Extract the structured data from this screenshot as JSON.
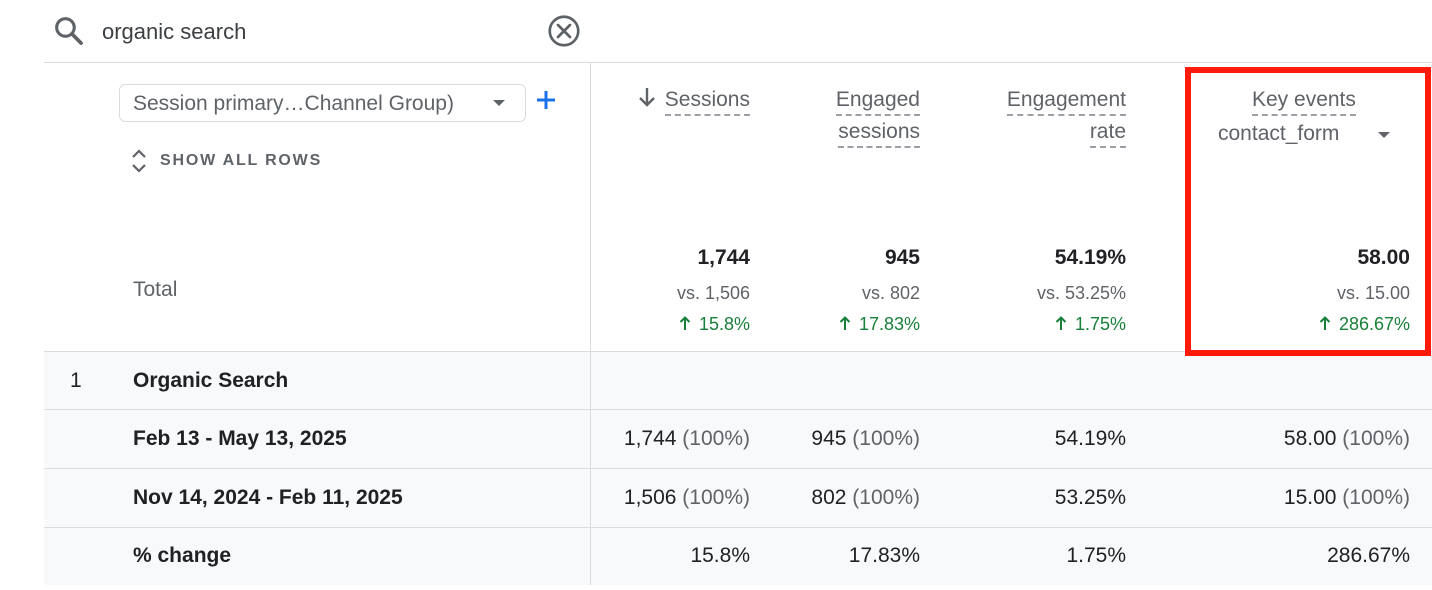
{
  "search": {
    "query": "organic search",
    "icon": "search-icon",
    "clear_icon": "close-circle-icon"
  },
  "dimension": {
    "selected": "Session primary…Channel Group)",
    "show_all_rows": "SHOW ALL ROWS"
  },
  "columns": [
    {
      "line1": "Sessions",
      "line2": "",
      "sorted": "descending"
    },
    {
      "line1": "Engaged",
      "line2": "sessions"
    },
    {
      "line1": "Engagement",
      "line2": "rate"
    },
    {
      "line1": "Key events",
      "event": "contact_form"
    }
  ],
  "totals": {
    "label": "Total",
    "values": [
      "1,744",
      "945",
      "54.19%",
      "58.00"
    ],
    "comparisons": [
      "vs. 1,506",
      "vs. 802",
      "vs. 53.25%",
      "vs. 15.00"
    ],
    "changes": [
      "15.8%",
      "17.83%",
      "1.75%",
      "286.67%"
    ]
  },
  "rows": [
    {
      "num": "1",
      "label": "Organic Search"
    },
    {
      "label": "Feb 13 - May 13, 2025",
      "cells": [
        {
          "v": "1,744",
          "p": "(100%)"
        },
        {
          "v": "945",
          "p": "(100%)"
        },
        {
          "v": "54.19%",
          "p": ""
        },
        {
          "v": "58.00",
          "p": "(100%)"
        }
      ]
    },
    {
      "label": "Nov 14, 2024 - Feb 11, 2025",
      "cells": [
        {
          "v": "1,506",
          "p": "(100%)"
        },
        {
          "v": "802",
          "p": "(100%)"
        },
        {
          "v": "53.25%",
          "p": ""
        },
        {
          "v": "15.00",
          "p": "(100%)"
        }
      ]
    },
    {
      "label": "% change",
      "cells": [
        {
          "v": "15.8%",
          "p": ""
        },
        {
          "v": "17.83%",
          "p": ""
        },
        {
          "v": "1.75%",
          "p": ""
        },
        {
          "v": "286.67%",
          "p": ""
        }
      ]
    }
  ],
  "colors": {
    "positive_change": "#188038",
    "highlight_border": "#ff1a0a",
    "add_button": "#1a73e8"
  }
}
